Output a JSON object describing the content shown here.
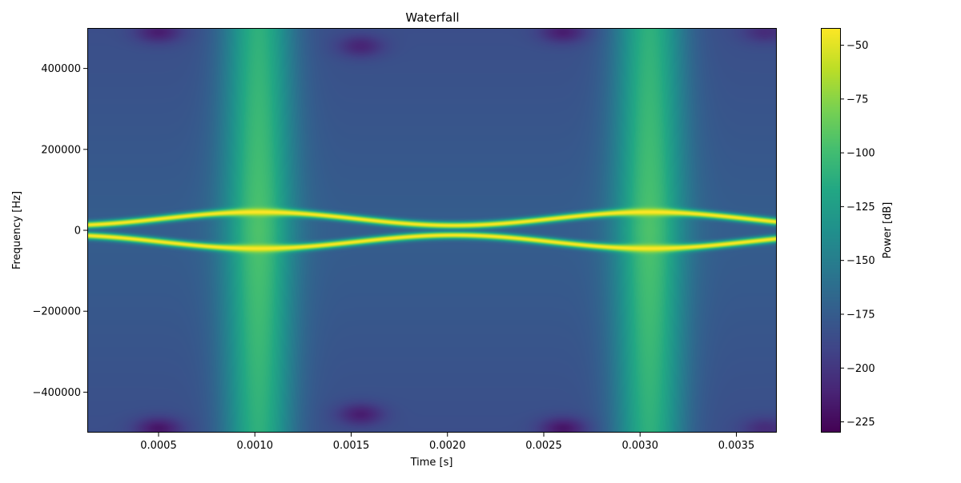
{
  "chart_data": {
    "type": "heatmap",
    "title": "Waterfall",
    "xlabel": "Time [s]",
    "ylabel": "Frequency [Hz]",
    "xlim": [
      0.00013,
      0.00371
    ],
    "ylim": [
      -500000,
      500000
    ],
    "x_ticks": [
      0.0005,
      0.001,
      0.0015,
      0.002,
      0.0025,
      0.003,
      0.0035
    ],
    "x_tick_labels": [
      "0.0005",
      "0.0010",
      "0.0015",
      "0.0020",
      "0.0025",
      "0.0030",
      "0.0035"
    ],
    "y_ticks": [
      400000,
      200000,
      0,
      -200000,
      -400000
    ],
    "y_tick_labels": [
      "400000",
      "200000",
      "0",
      "−200000",
      "−400000"
    ],
    "colormap": "viridis",
    "colorbar": {
      "label": "Power [dB]",
      "range": [
        -230,
        -42
      ],
      "ticks": [
        -50,
        -75,
        -100,
        -125,
        -150,
        -175,
        -200,
        -225
      ],
      "tick_labels": [
        "−50",
        "−75",
        "−100",
        "−125",
        "−150",
        "−175",
        "−200",
        "−225"
      ]
    },
    "signal": {
      "description": "two symmetric tones around 0 Hz whose offset oscillates with period 0.002 s",
      "offset_min_hz": 12000,
      "offset_max_hz": 45000,
      "offset_peak_times_s": [
        0.00102,
        0.00305
      ],
      "offset_min_times_s": [
        0.00205
      ],
      "tone_power_db": -42
    },
    "broadband_peaks_s": [
      0.00102,
      0.00305
    ],
    "broadband_peak_power_db": -110,
    "background_power_db": -185,
    "dark_spots": [
      {
        "t": 0.0005,
        "f": 490000,
        "db": -220
      },
      {
        "t": 0.0005,
        "f": -490000,
        "db": -225
      },
      {
        "t": 0.00155,
        "f": 455000,
        "db": -215
      },
      {
        "t": 0.00155,
        "f": -455000,
        "db": -220
      },
      {
        "t": 0.0026,
        "f": 490000,
        "db": -220
      },
      {
        "t": 0.0026,
        "f": -490000,
        "db": -225
      },
      {
        "t": 0.00365,
        "f": 490000,
        "db": -210
      },
      {
        "t": 0.00365,
        "f": -490000,
        "db": -210
      }
    ]
  }
}
